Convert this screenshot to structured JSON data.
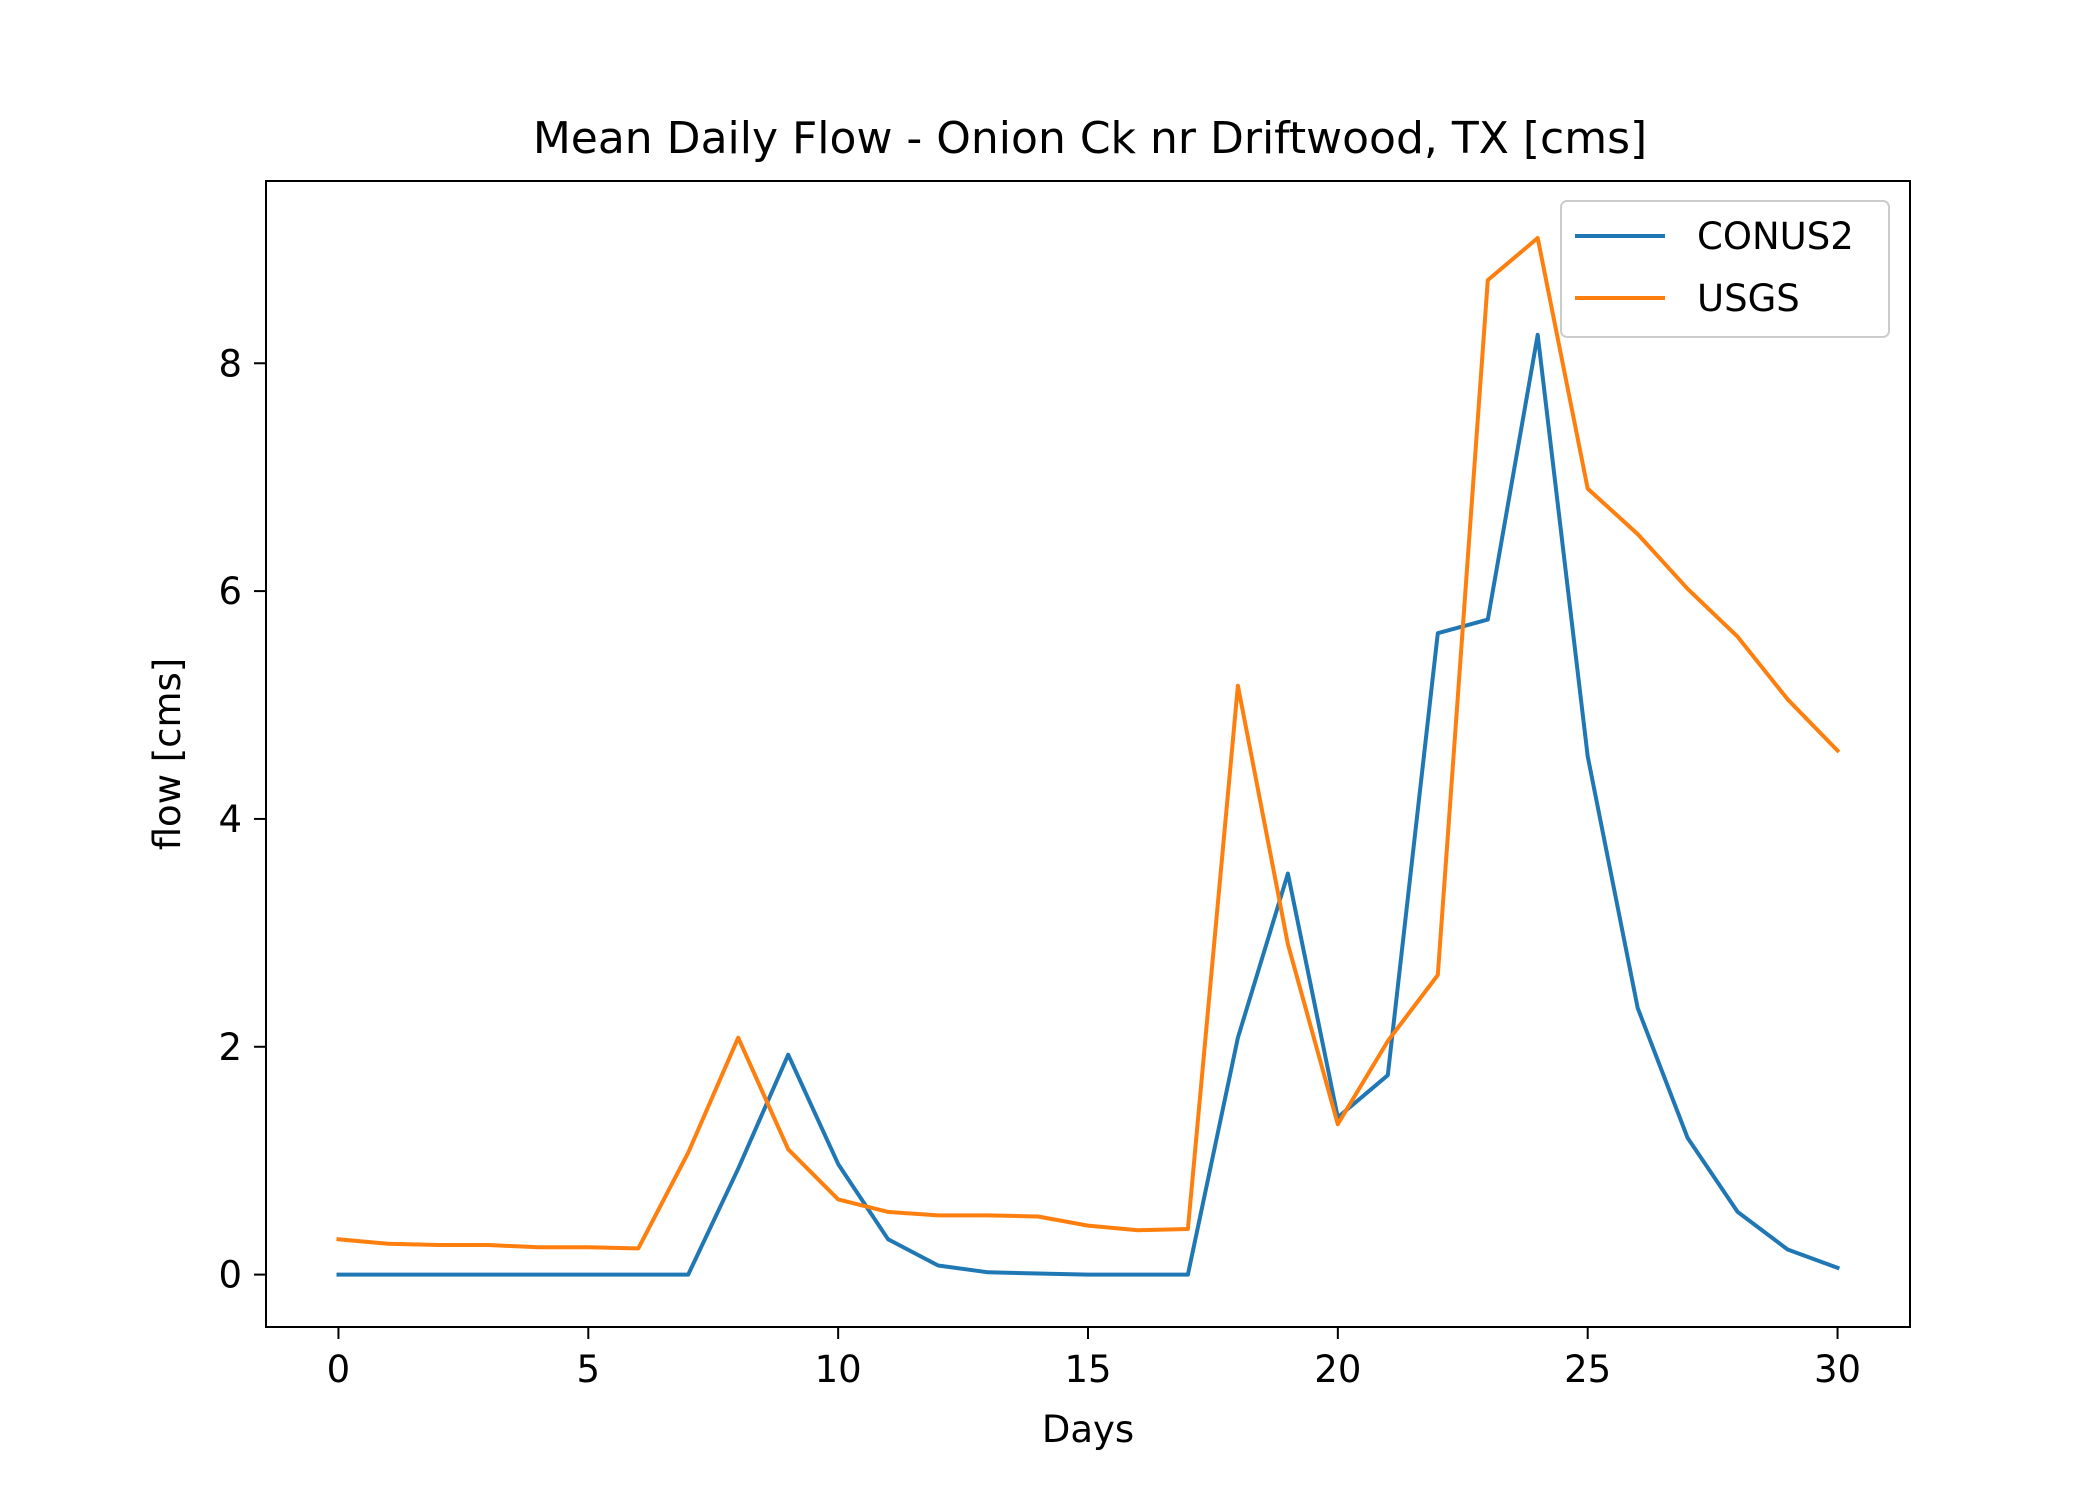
{
  "chart_data": {
    "type": "line",
    "title": "Mean Daily Flow - Onion Ck nr Driftwood, TX [cms]",
    "xlabel": "Days",
    "ylabel": "flow [cms]",
    "xlim": [
      -1.45,
      31.45
    ],
    "ylim": [
      -0.46,
      9.6
    ],
    "xticks": [
      0,
      5,
      10,
      15,
      20,
      25,
      30
    ],
    "yticks": [
      0,
      2,
      4,
      6,
      8
    ],
    "grid": false,
    "legend_position": "upper right",
    "x": [
      0,
      1,
      2,
      3,
      4,
      5,
      6,
      7,
      8,
      9,
      10,
      11,
      12,
      13,
      14,
      15,
      16,
      17,
      18,
      19,
      20,
      21,
      22,
      23,
      24,
      25,
      26,
      27,
      28,
      29,
      30
    ],
    "series": [
      {
        "name": "CONUS2",
        "color": "#1f77b4",
        "values": [
          0,
          0,
          0,
          0,
          0,
          0,
          0,
          0,
          0.93,
          1.93,
          0.97,
          0.31,
          0.08,
          0.02,
          0.01,
          0,
          0,
          0,
          2.08,
          3.52,
          1.38,
          1.75,
          5.63,
          5.75,
          8.25,
          4.55,
          2.34,
          1.2,
          0.55,
          0.22,
          0.06
        ]
      },
      {
        "name": "USGS",
        "color": "#ff7f0e",
        "values": [
          0.31,
          0.27,
          0.26,
          0.26,
          0.24,
          0.24,
          0.23,
          1.07,
          2.08,
          1.1,
          0.66,
          0.55,
          0.52,
          0.52,
          0.51,
          0.43,
          0.39,
          0.4,
          5.17,
          2.9,
          1.32,
          2.05,
          2.63,
          8.73,
          9.1,
          6.9,
          6.5,
          6.02,
          5.6,
          5.05,
          4.6
        ]
      }
    ]
  }
}
